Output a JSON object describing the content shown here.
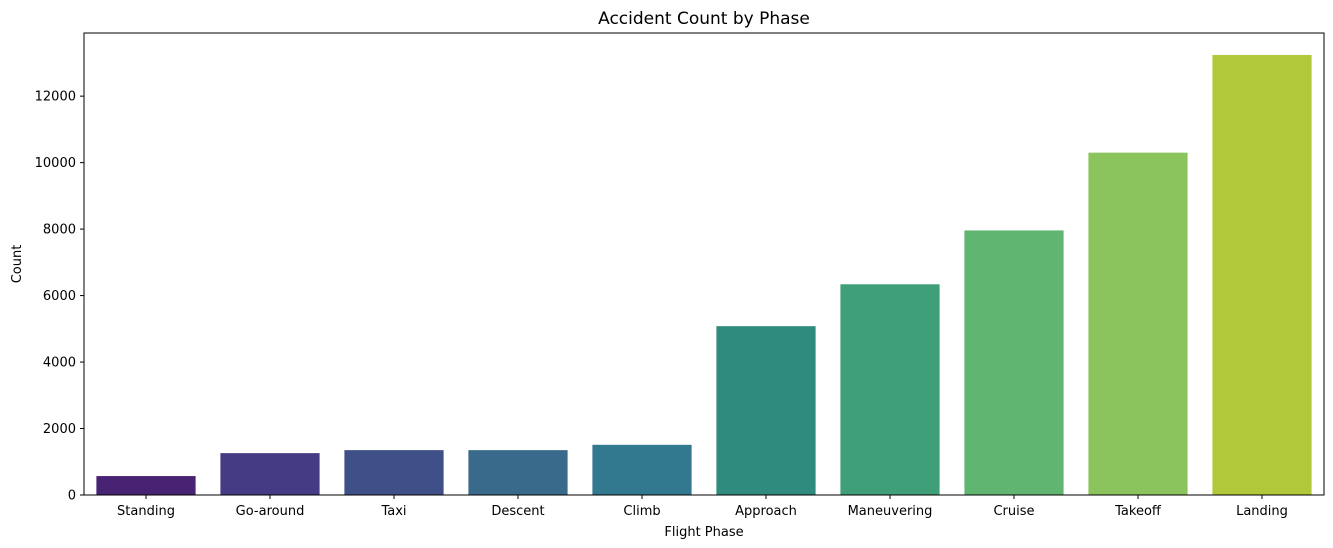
{
  "chart_data": {
    "type": "bar",
    "title": "Accident Count by Phase",
    "xlabel": "Flight Phase",
    "ylabel": "Count",
    "categories": [
      "Standing",
      "Go-around",
      "Taxi",
      "Descent",
      "Climb",
      "Approach",
      "Maneuvering",
      "Cruise",
      "Takeoff",
      "Landing"
    ],
    "values": [
      570,
      1260,
      1350,
      1350,
      1510,
      5080,
      6340,
      7960,
      10300,
      13240
    ],
    "colors": [
      "#482374",
      "#443b84",
      "#3f5089",
      "#3a6a8b",
      "#32788e",
      "#2e8b7e",
      "#3e9f78",
      "#60b671",
      "#8bc45c",
      "#b0c83a"
    ],
    "ylim": [
      0,
      13900
    ],
    "yticks": [
      0,
      2000,
      4000,
      6000,
      8000,
      10000,
      12000
    ],
    "grid": false,
    "legend": false
  }
}
